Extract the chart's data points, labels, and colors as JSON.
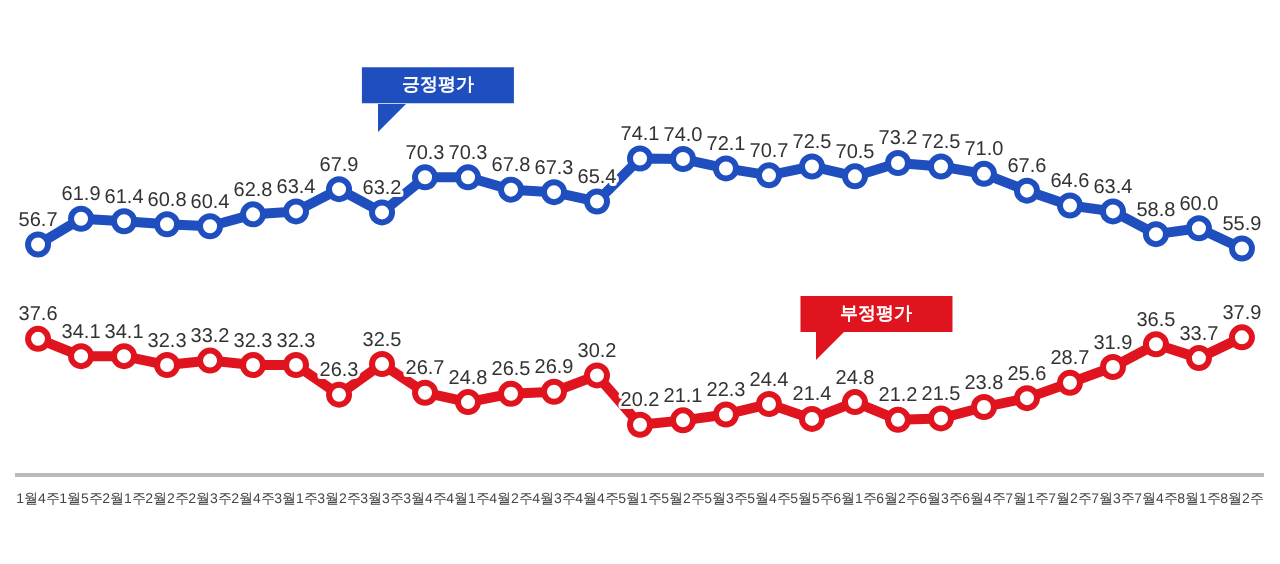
{
  "chart_data": {
    "type": "line",
    "categories": [
      "1월4주",
      "1월5주",
      "2월1주",
      "2월2주",
      "2월3주",
      "2월4주",
      "3월1주",
      "3월2주",
      "3월3주",
      "3월4주",
      "4월1주",
      "4월2주",
      "4월3주",
      "4월4주",
      "5월1주",
      "5월2주",
      "5월3주",
      "5월4주",
      "5월5주",
      "6월1주",
      "6월2주",
      "6월3주",
      "6월4주",
      "7월1주",
      "7월2주",
      "7월3주",
      "7월4주",
      "8월1주",
      "8월2주"
    ],
    "series": [
      {
        "name": "긍정평가",
        "color": "#1f4fbf",
        "values": [
          56.7,
          61.9,
          61.4,
          60.8,
          60.4,
          62.8,
          63.4,
          67.9,
          63.2,
          70.3,
          70.3,
          67.8,
          67.3,
          65.4,
          74.1,
          74.0,
          72.1,
          70.7,
          72.5,
          70.5,
          73.2,
          72.5,
          71.0,
          67.6,
          64.6,
          63.4,
          58.8,
          60.0,
          55.9
        ],
        "value_labels": [
          "56.7",
          "61.9",
          "61.4",
          "60.8",
          "60.4",
          "62.8",
          "63.4",
          "67.9",
          "63.2",
          "70.3",
          "70.3",
          "67.8",
          "67.3",
          "65.4",
          "74.1",
          "74.0",
          "72.1",
          "70.7",
          "72.5",
          "70.5",
          "73.2",
          "72.5",
          "71.0",
          "67.6",
          "64.6",
          "63.4",
          "58.8",
          "60.0",
          "55.9"
        ]
      },
      {
        "name": "부정평가",
        "color": "#e0141e",
        "values": [
          37.6,
          34.1,
          34.1,
          32.3,
          33.2,
          32.3,
          32.3,
          26.3,
          32.5,
          26.7,
          24.8,
          26.5,
          26.9,
          30.2,
          20.2,
          21.1,
          22.3,
          24.4,
          21.4,
          24.8,
          21.2,
          21.5,
          23.8,
          25.6,
          28.7,
          31.9,
          36.5,
          33.7,
          37.9
        ],
        "value_labels": [
          "37.6",
          "34.1",
          "34.1",
          "32.3",
          "33.2",
          "32.3",
          "32.3",
          "26.3",
          "32.5",
          "26.7",
          "24.8",
          "26.5",
          "26.9",
          "30.2",
          "20.2",
          "21.1",
          "22.3",
          "24.4",
          "21.4",
          "24.8",
          "21.2",
          "21.5",
          "23.8",
          "25.6",
          "28.7",
          "31.9",
          "36.5",
          "33.7",
          "37.9"
        ]
      }
    ],
    "tick_labels": "x",
    "grid": false,
    "legend": false,
    "marker": "circle",
    "line_style": "solid"
  }
}
